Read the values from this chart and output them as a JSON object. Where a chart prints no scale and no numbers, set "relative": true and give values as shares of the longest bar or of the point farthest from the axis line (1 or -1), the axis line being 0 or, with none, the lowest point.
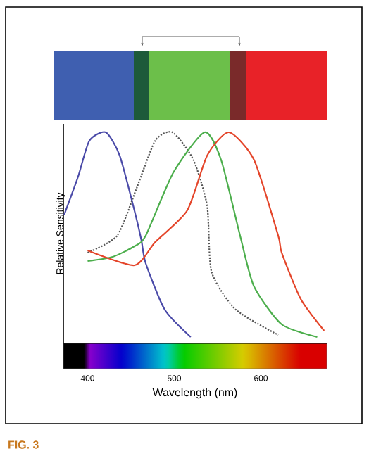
{
  "chart_data": {
    "type": "line",
    "relative": true,
    "xlabel": "Wavelength (nm)",
    "ylabel": "Relative Sensitivity",
    "xlim": [
      372,
      676
    ],
    "xticks": [
      400,
      500,
      600
    ],
    "grid": false,
    "marker": "none",
    "line_style": "solid",
    "series": [
      {
        "color": "#4a4aa8",
        "x": [
          373,
          389,
          402,
          421,
          437,
          454,
          462,
          467,
          489,
          519
        ],
        "values": [
          0.61,
          0.79,
          0.96,
          1,
          0.89,
          0.63,
          0.49,
          0.38,
          0.16,
          0.03
        ]
      },
      {
        "color": "#555555",
        "line_style": "dotted",
        "x": [
          400,
          434,
          457,
          478,
          498,
          522,
          538,
          543,
          571,
          620
        ],
        "values": [
          0.43,
          0.51,
          0.74,
          0.96,
          1,
          0.87,
          0.65,
          0.34,
          0.16,
          0.04
        ]
      },
      {
        "color": "#4cae4c",
        "x": [
          400,
          429,
          454,
          467,
          499,
          535,
          554,
          576,
          592,
          624,
          665
        ],
        "values": [
          0.39,
          0.41,
          0.46,
          0.51,
          0.81,
          1,
          0.87,
          0.51,
          0.27,
          0.09,
          0.03
        ]
      },
      {
        "color": "#e4452a",
        "x": [
          400,
          454,
          478,
          515,
          538,
          563,
          592,
          620,
          624,
          646,
          673
        ],
        "values": [
          0.44,
          0.37,
          0.48,
          0.63,
          0.89,
          1,
          0.87,
          0.51,
          0.43,
          0.21,
          0.06
        ]
      }
    ],
    "annotations": [
      "FIG. 3"
    ]
  }
}
